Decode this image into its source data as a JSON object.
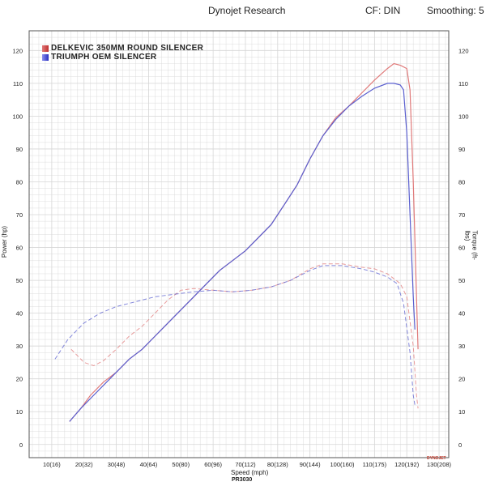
{
  "header": {
    "title": "Dynojet Research",
    "cf": "CF: DIN",
    "smoothing": "Smoothing: 5"
  },
  "footer": {
    "xlabel": "Speed (mph)",
    "sublabel": "PR3030",
    "brand": "DYNOJET"
  },
  "colors": {
    "series_a": "#e07a7a",
    "series_b": "#5a5fcf",
    "grid": "#d6d6d6",
    "axis": "#555555"
  },
  "chart_data": {
    "type": "line",
    "title": "",
    "xlabel": "Speed (mph)",
    "ylabel_left": "Power (hp)",
    "ylabel_right": "Torque (ft-lbs)",
    "xlim": [
      3,
      133
    ],
    "ylim": [
      -4,
      126
    ],
    "x_ticks": [
      "10(16)",
      "20(32)",
      "30(48)",
      "40(64)",
      "50(80)",
      "60(96)",
      "70(112)",
      "80(128)",
      "90(144)",
      "100(160)",
      "110(175)",
      "120(192)",
      "130(208)"
    ],
    "x_tick_values": [
      10,
      20,
      30,
      40,
      50,
      60,
      70,
      80,
      90,
      100,
      110,
      120,
      130
    ],
    "y_ticks": [
      0,
      10,
      20,
      30,
      40,
      50,
      60,
      70,
      80,
      90,
      100,
      110,
      120
    ],
    "grid": true,
    "legend_position": "top-left",
    "series": [
      {
        "name": "DELKEVIC 350MM ROUND SILENCER",
        "color": "#e07a7a",
        "power": [
          [
            15.5,
            7
          ],
          [
            19,
            11
          ],
          [
            22,
            15
          ],
          [
            26,
            19
          ],
          [
            30,
            22
          ],
          [
            34,
            26
          ],
          [
            38,
            29
          ],
          [
            42,
            33
          ],
          [
            46,
            37
          ],
          [
            50,
            41
          ],
          [
            54,
            45
          ],
          [
            58,
            49
          ],
          [
            62,
            53
          ],
          [
            66,
            56
          ],
          [
            70,
            59
          ],
          [
            74,
            63
          ],
          [
            78,
            67
          ],
          [
            82,
            73
          ],
          [
            86,
            79
          ],
          [
            90,
            87
          ],
          [
            94,
            94
          ],
          [
            98,
            99.5
          ],
          [
            102,
            103
          ],
          [
            106,
            107
          ],
          [
            110,
            111
          ],
          [
            114,
            114.5
          ],
          [
            116,
            116
          ],
          [
            118,
            115.5
          ],
          [
            120,
            114.5
          ],
          [
            121,
            108
          ],
          [
            122,
            80
          ],
          [
            123,
            45
          ],
          [
            123.5,
            29
          ]
        ],
        "torque": [
          [
            16,
            29
          ],
          [
            18,
            27
          ],
          [
            20,
            25
          ],
          [
            23,
            24
          ],
          [
            26,
            25.5
          ],
          [
            30,
            29
          ],
          [
            34,
            33
          ],
          [
            38,
            36
          ],
          [
            42,
            40
          ],
          [
            46,
            44
          ],
          [
            50,
            47
          ],
          [
            54,
            47.5
          ],
          [
            60,
            47
          ],
          [
            66,
            46.5
          ],
          [
            72,
            47
          ],
          [
            78,
            48
          ],
          [
            84,
            50
          ],
          [
            90,
            53.5
          ],
          [
            94,
            55
          ],
          [
            100,
            55
          ],
          [
            106,
            54
          ],
          [
            110,
            53.5
          ],
          [
            114,
            52
          ],
          [
            118,
            49
          ],
          [
            120,
            45
          ],
          [
            122,
            30
          ],
          [
            123,
            15
          ],
          [
            123.5,
            11
          ]
        ]
      },
      {
        "name": "TRIUMPH OEM SILENCER",
        "color": "#5a5fcf",
        "power": [
          [
            15.5,
            7
          ],
          [
            19,
            11
          ],
          [
            22,
            14
          ],
          [
            26,
            18
          ],
          [
            30,
            22
          ],
          [
            34,
            26
          ],
          [
            38,
            29
          ],
          [
            42,
            33
          ],
          [
            46,
            37
          ],
          [
            50,
            41
          ],
          [
            54,
            45
          ],
          [
            58,
            49
          ],
          [
            62,
            53
          ],
          [
            66,
            56
          ],
          [
            70,
            59
          ],
          [
            74,
            63
          ],
          [
            78,
            67
          ],
          [
            82,
            73
          ],
          [
            86,
            79
          ],
          [
            90,
            87
          ],
          [
            94,
            94
          ],
          [
            98,
            99
          ],
          [
            102,
            103
          ],
          [
            106,
            106
          ],
          [
            110,
            108.5
          ],
          [
            114,
            110
          ],
          [
            116,
            110
          ],
          [
            118,
            109.5
          ],
          [
            119,
            108
          ],
          [
            120,
            95
          ],
          [
            121,
            70
          ],
          [
            122,
            45
          ],
          [
            122.5,
            35
          ]
        ],
        "torque": [
          [
            11,
            26
          ],
          [
            15,
            32
          ],
          [
            20,
            37
          ],
          [
            25,
            40
          ],
          [
            30,
            42
          ],
          [
            34,
            43
          ],
          [
            38,
            44
          ],
          [
            42,
            45
          ],
          [
            46,
            45.5
          ],
          [
            50,
            46
          ],
          [
            54,
            46.5
          ],
          [
            60,
            47
          ],
          [
            66,
            46.5
          ],
          [
            72,
            47
          ],
          [
            78,
            48
          ],
          [
            84,
            50
          ],
          [
            90,
            53
          ],
          [
            94,
            54.5
          ],
          [
            100,
            54.5
          ],
          [
            106,
            53.5
          ],
          [
            110,
            52.5
          ],
          [
            114,
            51
          ],
          [
            117,
            49
          ],
          [
            119,
            43
          ],
          [
            121,
            28
          ],
          [
            122,
            15
          ],
          [
            122.5,
            12
          ]
        ]
      }
    ]
  }
}
